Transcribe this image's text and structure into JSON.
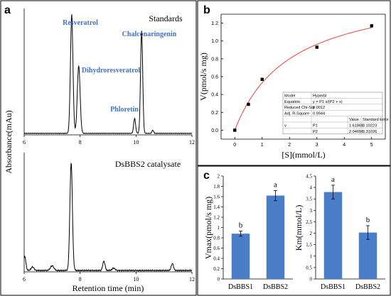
{
  "panels": {
    "a": "a",
    "b": "b",
    "c": "c"
  },
  "chart_data": [
    {
      "id": "a_standards",
      "type": "line",
      "panel_text": "Standards",
      "ylabel": "Absorbance(mAu)",
      "xlim": [
        6,
        12
      ],
      "ylim": [
        0,
        1
      ],
      "x_ticks": [
        6,
        8,
        10,
        12
      ],
      "annotations": [
        {
          "text": "Resveratrol",
          "x": 7.7
        },
        {
          "text": "Dihydroresveratrol",
          "x": 7.95
        },
        {
          "text": "Phloretin",
          "x": 9.95
        },
        {
          "text": "Chalconaringenin",
          "x": 10.2
        }
      ],
      "annotation_color": "#4472c4",
      "peaks": [
        {
          "x": 7.7,
          "h": 0.95,
          "w": 0.045
        },
        {
          "x": 7.95,
          "h": 0.54,
          "w": 0.05
        },
        {
          "x": 9.95,
          "h": 0.12,
          "w": 0.035
        },
        {
          "x": 10.2,
          "h": 0.82,
          "w": 0.038
        },
        {
          "x": 10.6,
          "h": 0.025,
          "w": 0.03
        }
      ]
    },
    {
      "id": "a_catalysate",
      "type": "line",
      "panel_text": "DsBBS2 catalysate",
      "xlabel": "Retention time (min)",
      "xlim": [
        6,
        12
      ],
      "ylim": [
        0,
        1
      ],
      "x_ticks": [
        6,
        8,
        10,
        12
      ],
      "peaks": [
        {
          "x": 7.68,
          "h": 0.92,
          "w": 0.045
        },
        {
          "x": 6.02,
          "h": 0.12,
          "w": 0.04
        },
        {
          "x": 6.3,
          "h": 0.03,
          "w": 0.05
        },
        {
          "x": 7.0,
          "h": 0.04,
          "w": 0.06
        },
        {
          "x": 8.85,
          "h": 0.08,
          "w": 0.04
        },
        {
          "x": 9.2,
          "h": 0.02,
          "w": 0.05
        },
        {
          "x": 11.3,
          "h": 0.06,
          "w": 0.04
        }
      ]
    },
    {
      "id": "b_kinetics",
      "type": "scatter",
      "xlabel": "[S](mmol/L)",
      "ylabel": "V(pmol/s mg)",
      "xlim": [
        -0.5,
        5.5
      ],
      "ylim": [
        -0.1,
        1.3
      ],
      "x_ticks": [
        0,
        1,
        2,
        3,
        4,
        5
      ],
      "y_ticks": [
        0.0,
        0.2,
        0.4,
        0.6,
        0.8,
        1.0,
        1.2
      ],
      "points": [
        {
          "x": 0,
          "y": 0.0
        },
        {
          "x": 0.5,
          "y": 0.29
        },
        {
          "x": 1.0,
          "y": 0.57
        },
        {
          "x": 3.0,
          "y": 0.93
        },
        {
          "x": 5.0,
          "y": 1.17
        }
      ],
      "fit": {
        "P1": 1.61868,
        "P2": 2.04656,
        "color": "#e8433a"
      },
      "fit_table": {
        "rows": [
          [
            "Model",
            "Hyperbl",
            "",
            ""
          ],
          [
            "Equation",
            "y = P1 x/(P2 + x)",
            "",
            ""
          ],
          [
            "Reduced Chi-Sqr",
            "0.0012",
            "",
            ""
          ],
          [
            "Adj. R-Square",
            "0.9944",
            "",
            ""
          ],
          [
            "",
            "",
            "Value",
            "Standard Error"
          ],
          [
            "v",
            "P1",
            "1.61868",
            "0.10223"
          ],
          [
            "",
            "P2",
            "2.04656",
            "0.31026"
          ]
        ]
      }
    },
    {
      "id": "c_vmax",
      "type": "bar",
      "categories": [
        "DsBBS1",
        "DsBBS2"
      ],
      "values": [
        0.88,
        1.62
      ],
      "errors": [
        0.05,
        0.1
      ],
      "letters": [
        "b",
        "a"
      ],
      "ylabel": "Vmax(pmol/s mg)",
      "ylim": [
        0,
        2.0
      ],
      "y_ticks": [
        "0",
        "0.2",
        "0.4",
        "0.6",
        "0.8",
        "1",
        "1.2",
        "1.4",
        "1.6",
        "1.8",
        "2"
      ],
      "bar_color": "#4a7ec9"
    },
    {
      "id": "c_km",
      "type": "bar",
      "categories": [
        "DsBBS1",
        "DsBBS2"
      ],
      "values": [
        3.8,
        2.03
      ],
      "errors": [
        0.3,
        0.3
      ],
      "letters": [
        "a",
        "b"
      ],
      "ylabel": "Km(mmol/L)",
      "ylim": [
        0,
        4.5
      ],
      "y_ticks": [
        "0",
        "0.5",
        "1",
        "1.5",
        "2",
        "2.5",
        "3",
        "3.5",
        "4",
        "4.5"
      ],
      "bar_color": "#4a7ec9"
    }
  ]
}
